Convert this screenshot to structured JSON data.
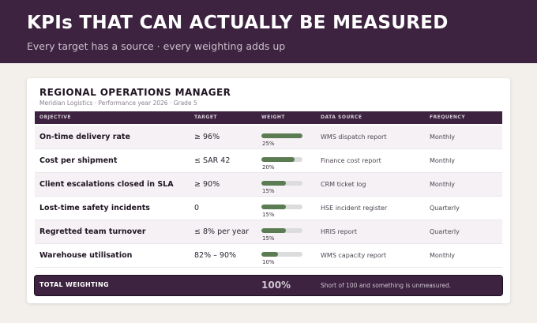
{
  "header": {
    "title": "KPIs THAT CAN ACTUALLY BE MEASURED",
    "subtitle": "Every target has a source  ·  every weighting adds up"
  },
  "card": {
    "role": "REGIONAL OPERATIONS MANAGER",
    "meta": "Meridian Logistics  ·  Performance year 2026  ·  Grade 5"
  },
  "columns": {
    "objective": "OBJECTIVE",
    "target": "TARGET",
    "weight": "WEIGHT",
    "source": "DATA SOURCE",
    "frequency": "FREQUENCY"
  },
  "kpis": [
    {
      "objective": "On-time delivery rate",
      "target": "≥ 96%",
      "weight": 25,
      "weight_label": "25%",
      "source": "WMS dispatch report",
      "frequency": "Monthly"
    },
    {
      "objective": "Cost per shipment",
      "target": "≤ SAR 42",
      "weight": 20,
      "weight_label": "20%",
      "source": "Finance cost report",
      "frequency": "Monthly"
    },
    {
      "objective": "Client escalations closed in SLA",
      "target": "≥ 90%",
      "weight": 15,
      "weight_label": "15%",
      "source": "CRM ticket log",
      "frequency": "Monthly"
    },
    {
      "objective": "Lost-time safety incidents",
      "target": "0",
      "weight": 15,
      "weight_label": "15%",
      "source": "HSE incident register",
      "frequency": "Quarterly"
    },
    {
      "objective": "Regretted team turnover",
      "target": "≤ 8% per year",
      "weight": 15,
      "weight_label": "15%",
      "source": "HRIS report",
      "frequency": "Quarterly"
    },
    {
      "objective": "Warehouse utilisation",
      "target": "82% – 90%",
      "weight": 10,
      "weight_label": "10%",
      "source": "WMS capacity report",
      "frequency": "Monthly"
    }
  ],
  "weight_scale_max": 25,
  "total": {
    "label": "TOTAL WEIGHTING",
    "value": "100%",
    "note": "Short of 100 and something is unmeasured."
  },
  "colors": {
    "header_bg": "#3d2340",
    "bar_fill": "#5b7b52",
    "bar_track": "#dcdcdc",
    "page_bg": "#f3f0ec"
  }
}
